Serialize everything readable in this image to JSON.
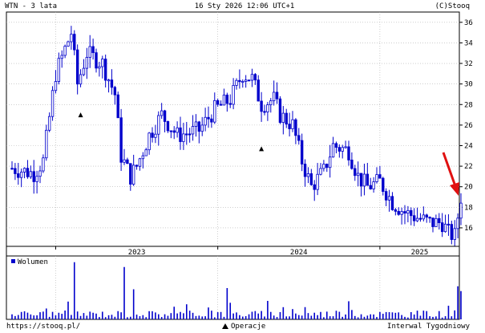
{
  "header": {
    "title": "WTN - 3 lata",
    "datetime": "16 Sty 2026 12:06 UTC+1",
    "copyright": "(C)Stooq"
  },
  "footer": {
    "url": "https://stooq.pl/",
    "operations": "Operacje",
    "interval": "Interwal Tygodniowy"
  },
  "volume_legend": "Wolumen",
  "colors": {
    "candle": "#0000cc",
    "grid": "#b0b0b0",
    "arrow": "#e01010",
    "volume": "#0000cc"
  },
  "chart_data": [
    {
      "type": "candlestick",
      "title": "WTN - 3 lata",
      "interval": "weekly",
      "x_labels": [
        "2023",
        "2024",
        "2025"
      ],
      "y_ticks": [
        16,
        18,
        20,
        22,
        24,
        26,
        28,
        30,
        32,
        34,
        36
      ],
      "ylim": [
        14.2,
        37.0
      ],
      "grid": true,
      "anchors": [
        [
          0,
          21.8
        ],
        [
          7,
          21.3
        ],
        [
          10,
          22.5
        ],
        [
          14,
          31.0
        ],
        [
          19,
          35.0
        ],
        [
          21,
          30.0
        ],
        [
          24,
          33.0
        ],
        [
          29,
          32.0
        ],
        [
          33,
          29.0
        ],
        [
          35,
          23.0
        ],
        [
          38,
          21.0
        ],
        [
          40,
          22.0
        ],
        [
          44,
          25.0
        ],
        [
          48,
          27.0
        ],
        [
          53,
          25.0
        ],
        [
          60,
          25.5
        ],
        [
          65,
          27.5
        ],
        [
          70,
          28.5
        ],
        [
          74,
          31.0
        ],
        [
          77,
          30.5
        ],
        [
          80,
          28.0
        ],
        [
          84,
          28.5
        ],
        [
          86,
          27.0
        ],
        [
          90,
          26.0
        ],
        [
          93,
          22.5
        ],
        [
          96,
          20.0
        ],
        [
          100,
          21.5
        ],
        [
          103,
          24.0
        ],
        [
          108,
          23.5
        ],
        [
          111,
          21.0
        ],
        [
          114,
          20.0
        ],
        [
          118,
          20.5
        ],
        [
          122,
          18.5
        ],
        [
          126,
          17.5
        ],
        [
          130,
          17.0
        ],
        [
          134,
          16.5
        ],
        [
          138,
          16.5
        ],
        [
          140,
          15.5
        ],
        [
          142,
          15.2
        ],
        [
          144,
          19.0
        ]
      ],
      "markers": [
        {
          "label": "Operacje",
          "week": 22,
          "value": 27.0
        },
        {
          "label": "Operacje",
          "week": 80,
          "value": 23.7
        }
      ],
      "highlight": {
        "type": "arrow",
        "target": "last candle",
        "week": 144,
        "value": 19.0
      }
    },
    {
      "type": "bar",
      "title": "Wolumen",
      "series": "weekly volume",
      "spikes": [
        [
          20,
          0.95
        ],
        [
          36,
          0.87
        ],
        [
          39,
          0.5
        ],
        [
          69,
          0.52
        ],
        [
          143,
          0.55
        ],
        [
          144,
          0.47
        ]
      ]
    }
  ]
}
